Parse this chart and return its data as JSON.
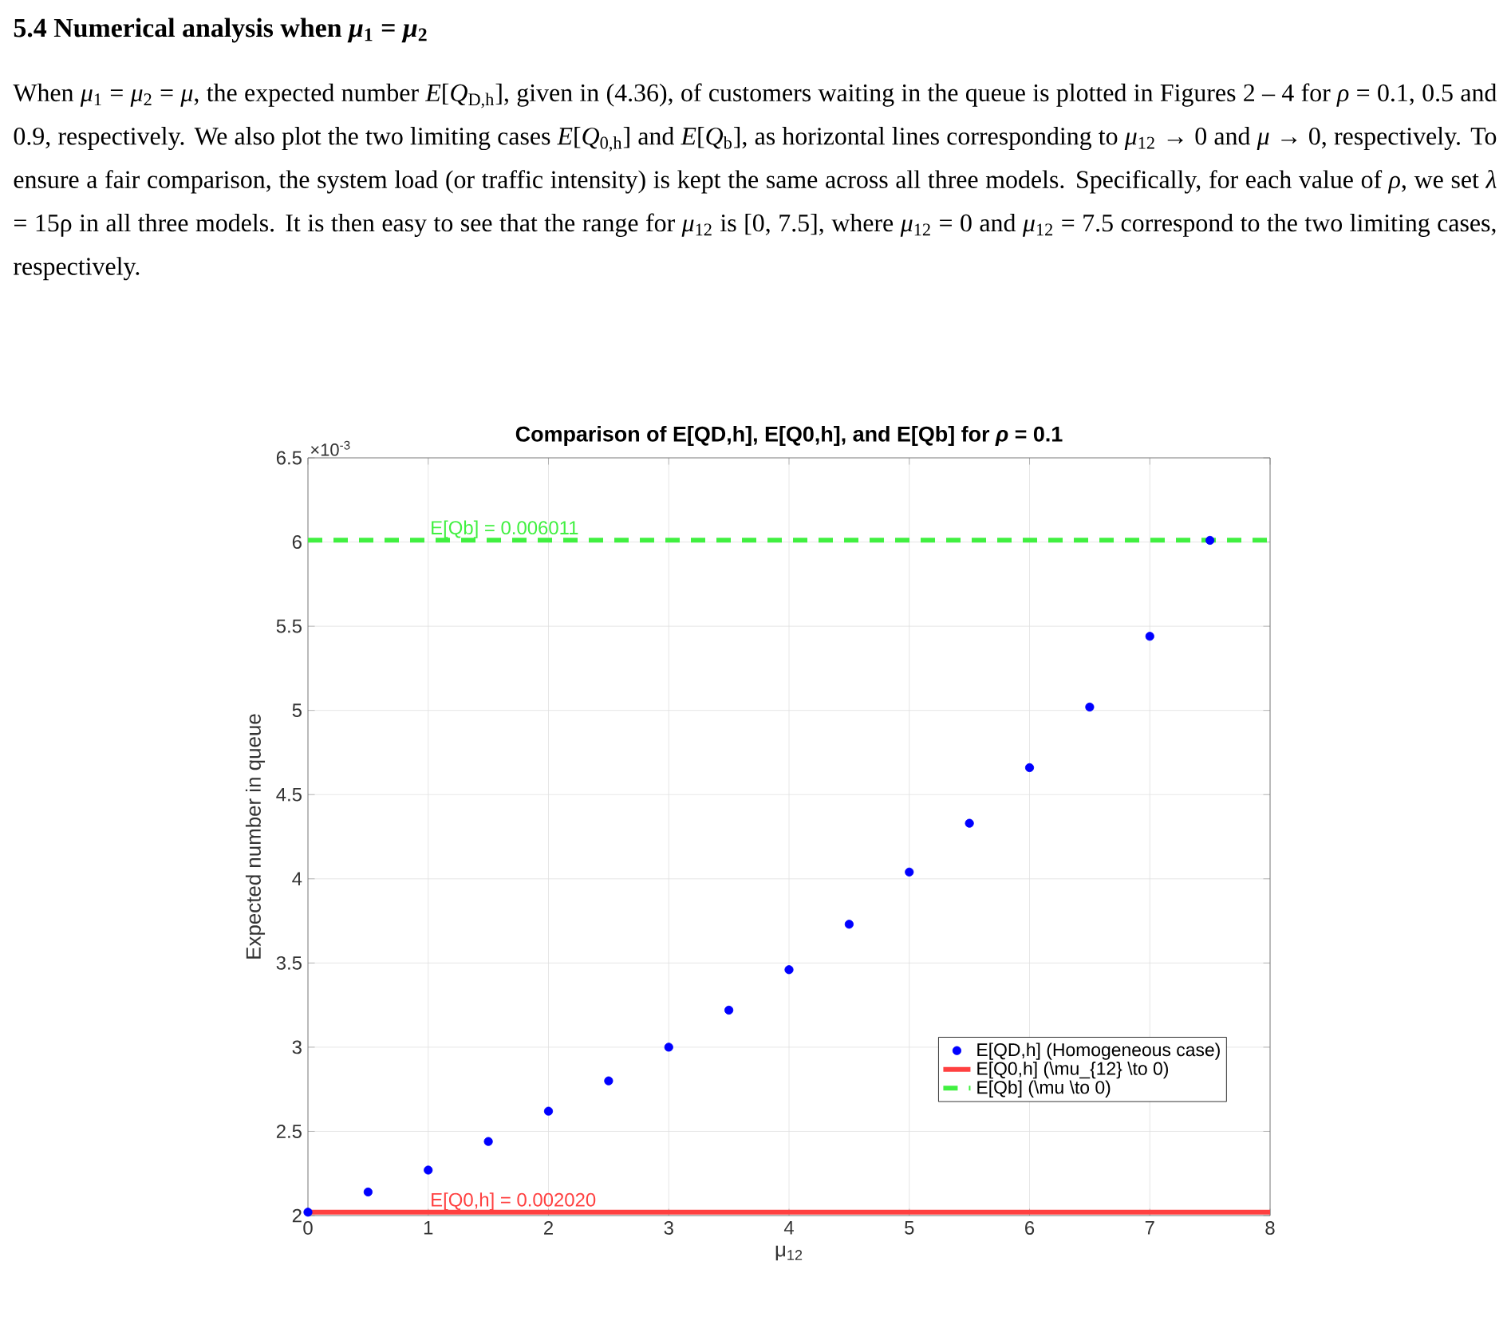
{
  "chart_data": {
    "type": "scatter",
    "title": "Comparison of E[QD,h], E[Q0,h], and E[Qb] for *ρ* = 0.1",
    "xlabel": "μ$_{12}$",
    "ylabel": "Expected number in queue",
    "xlim": [
      0,
      8
    ],
    "xticks": [
      0,
      1,
      2,
      3,
      4,
      5,
      6,
      7,
      8
    ],
    "ylim": [
      2,
      6.5
    ],
    "yticks": [
      2,
      2.5,
      3,
      3.5,
      4,
      4.5,
      5,
      5.5,
      6,
      6.5
    ],
    "grid": true,
    "legend": "bottom right",
    "series": [
      {
        "name": "E[QD,h] (Homogeneous case)",
        "color": "#0000ff",
        "x": [
          0,
          0.5,
          1,
          1.5,
          2,
          2.5,
          3,
          3.5,
          4,
          4.5,
          5,
          5.5,
          6,
          6.5,
          7,
          7.5
        ],
        "values": [
          2.02,
          2.14,
          2.27,
          2.44,
          2.62,
          2.8,
          3.0,
          3.22,
          3.46,
          3.73,
          4.04,
          4.33,
          4.66,
          5.02,
          5.44,
          6.01
        ]
      },
      {
        "name": "E[Q0,h] (\\mu_{12} \\to 0)",
        "type": "line",
        "color": "#ff4040",
        "line_style": "solid",
        "x": [
          0,
          8
        ],
        "values": [
          2.02,
          2.02
        ]
      },
      {
        "name": "E[Qb] (\\mu \\to 0)",
        "type": "line",
        "color": "#40f040",
        "line_style": "dashed",
        "x": [
          0,
          8
        ],
        "values": [
          6.011,
          6.011
        ]
      }
    ],
    "annotations": [
      "5.4 Numerical analysis when *μ*$_{1}$ = *μ*$_{2}$",
      "When *μ*$_{1}$ = *μ*$_{2}$ = *μ*, the expected number *E*[*Q*$_{D,h}$], given in (4.36), of customers waiting in the queue is plotted in Figures 2 – 4 for *ρ* = 0.1, 0.5 and 0.9, respectively. We also plot the two limiting cases *E*[*Q*$_{0,h}$] and *E*[*Q*$_{b}$], as horizontal lines corresponding to *μ*$_{12}$ → 0 and *μ* → 0, respectively. To ensure a fair comparison, the system load (or traffic intensity) is kept the same across all three models. Specifically, for each value of *ρ*, we set *λ* = 15ρ in all three models. It is then easy to see that the range for *μ*$_{12}$ is [0, 7.5], where *μ*$_{12}$ = 0 and *μ*$_{12}$ = 7.5 correspond to the two limiting cases, respectively.",
      "×10$^{-3}$",
      {
        "text": "E[Qb] = 0.006011",
        "x": 1,
        "y": 6.011
      },
      {
        "text": "E[Q0,h] = 0.002020",
        "x": 1,
        "y": 2.02
      }
    ]
  }
}
